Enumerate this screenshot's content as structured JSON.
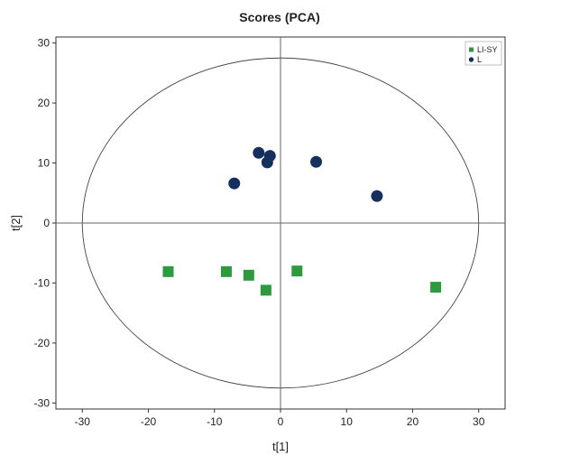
{
  "chart_data": {
    "type": "scatter",
    "title": "Scores (PCA)",
    "xlabel": "t[1]",
    "ylabel": "t[2]",
    "xlim": [
      -34,
      34
    ],
    "ylim": [
      -31,
      31
    ],
    "xticks": [
      -30,
      -20,
      -10,
      0,
      10,
      20,
      30
    ],
    "yticks": [
      -30,
      -20,
      -10,
      0,
      10,
      20,
      30
    ],
    "grid": false,
    "legend_position": "top-right",
    "ellipse": {
      "cx": 0,
      "cy": 0,
      "rx": 30,
      "ry": 27.5
    },
    "series": [
      {
        "name": "LI-SY",
        "color": "#2e9a3e",
        "marker": "square",
        "points": [
          {
            "x": -17.0,
            "y": -8.1
          },
          {
            "x": -8.2,
            "y": -8.1
          },
          {
            "x": -4.8,
            "y": -8.7
          },
          {
            "x": -2.2,
            "y": -11.2
          },
          {
            "x": 2.5,
            "y": -8.0
          },
          {
            "x": 23.5,
            "y": -10.7
          }
        ]
      },
      {
        "name": "L",
        "color": "#16305e",
        "marker": "circle",
        "points": [
          {
            "x": -7.0,
            "y": 6.6
          },
          {
            "x": -3.3,
            "y": 11.7
          },
          {
            "x": -2.0,
            "y": 10.1
          },
          {
            "x": -1.6,
            "y": 11.2
          },
          {
            "x": 5.4,
            "y": 10.2
          },
          {
            "x": 14.6,
            "y": 4.5
          }
        ]
      }
    ]
  }
}
